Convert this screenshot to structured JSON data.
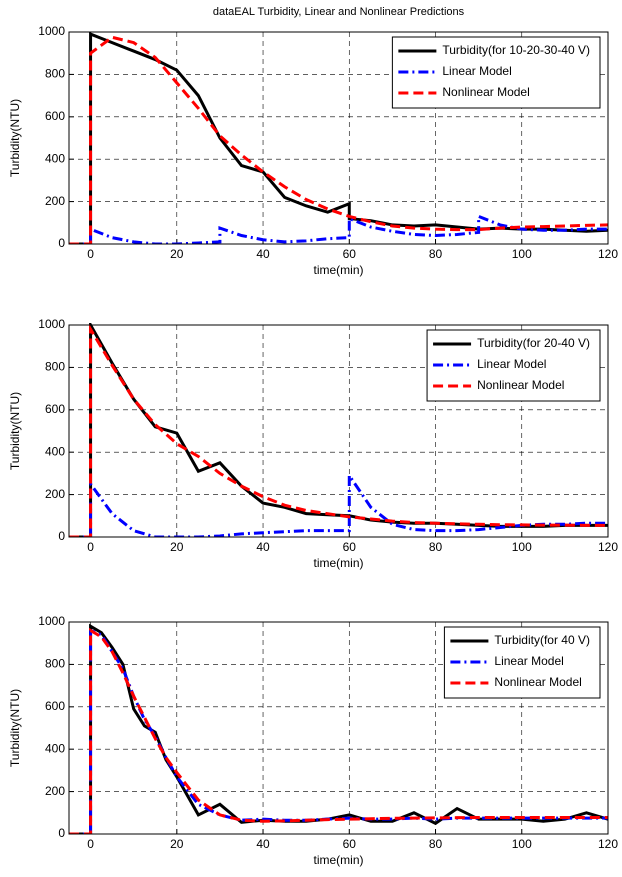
{
  "chart_data": [
    {
      "type": "line",
      "title": "dataEAL  Turbidity, Linear and Nonlinear Predictions",
      "x_label": "time(min)",
      "y_label": "Turbidity(NTU)",
      "xlim": [
        -5,
        120
      ],
      "ylim": [
        0,
        1000
      ],
      "xticks": [
        0,
        20,
        40,
        60,
        80,
        100,
        120
      ],
      "yticks": [
        0,
        200,
        400,
        600,
        800,
        1000
      ],
      "grid": true,
      "legend": "upper right",
      "x": [
        -5,
        0,
        0,
        5,
        10,
        15,
        20,
        25,
        30,
        30,
        35,
        40,
        45,
        50,
        55,
        60,
        60,
        65,
        70,
        75,
        80,
        85,
        90,
        90,
        95,
        100,
        105,
        110,
        115,
        120
      ],
      "series": [
        {
          "name": "Turbidity(for 10-20-30-40 V)",
          "color": "#000000",
          "style": "solid",
          "values": [
            0,
            0,
            990,
            950,
            910,
            870,
            820,
            700,
            500,
            500,
            370,
            340,
            220,
            180,
            150,
            190,
            120,
            110,
            90,
            85,
            90,
            80,
            70,
            70,
            75,
            70,
            70,
            65,
            60,
            65
          ]
        },
        {
          "name": "Linear Model",
          "color": "#0000ff",
          "style": "dashdot",
          "values": [
            0,
            0,
            70,
            30,
            10,
            0,
            0,
            5,
            10,
            75,
            40,
            20,
            10,
            15,
            25,
            30,
            120,
            80,
            60,
            45,
            40,
            45,
            55,
            130,
            90,
            70,
            65,
            65,
            70,
            70
          ]
        },
        {
          "name": "Nonlinear Model",
          "color": "#ff0000",
          "style": "dashed",
          "values": [
            0,
            0,
            900,
            975,
            950,
            880,
            760,
            640,
            510,
            510,
            420,
            340,
            270,
            210,
            165,
            130,
            130,
            105,
            85,
            75,
            70,
            68,
            68,
            68,
            75,
            80,
            82,
            85,
            88,
            90
          ]
        }
      ]
    },
    {
      "type": "line",
      "x_label": "time(min)",
      "y_label": "Turbidity(NTU)",
      "xlim": [
        -5,
        120
      ],
      "ylim": [
        0,
        1000
      ],
      "xticks": [
        0,
        20,
        40,
        60,
        80,
        100,
        120
      ],
      "yticks": [
        0,
        200,
        400,
        600,
        800,
        1000
      ],
      "grid": true,
      "legend": "upper right",
      "x": [
        -5,
        0,
        0,
        5,
        10,
        15,
        20,
        25,
        30,
        35,
        40,
        45,
        50,
        55,
        60,
        60,
        65,
        70,
        75,
        80,
        85,
        90,
        95,
        100,
        105,
        110,
        115,
        120
      ],
      "series": [
        {
          "name": "Turbidity(for 20-40 V)",
          "color": "#000000",
          "style": "solid",
          "values": [
            0,
            0,
            1000,
            820,
            650,
            520,
            490,
            310,
            350,
            240,
            160,
            140,
            110,
            105,
            100,
            100,
            80,
            70,
            65,
            65,
            60,
            55,
            50,
            50,
            50,
            55,
            55,
            55
          ]
        },
        {
          "name": "Linear Model",
          "color": "#0000ff",
          "style": "dashdot",
          "values": [
            0,
            0,
            250,
            110,
            30,
            0,
            0,
            0,
            5,
            15,
            20,
            25,
            30,
            30,
            30,
            290,
            140,
            60,
            35,
            30,
            30,
            35,
            45,
            55,
            60,
            60,
            65,
            65
          ]
        },
        {
          "name": "Nonlinear Model",
          "color": "#ff0000",
          "style": "dashed",
          "values": [
            0,
            0,
            980,
            810,
            650,
            530,
            440,
            380,
            300,
            240,
            190,
            150,
            125,
            110,
            95,
            95,
            85,
            75,
            68,
            65,
            62,
            60,
            58,
            57,
            56,
            56,
            55,
            55
          ]
        }
      ]
    },
    {
      "type": "line",
      "x_label": "time(min)",
      "y_label": "Turbidity(NTU)",
      "xlim": [
        -5,
        120
      ],
      "ylim": [
        0,
        1000
      ],
      "xticks": [
        0,
        20,
        40,
        60,
        80,
        100,
        120
      ],
      "yticks": [
        0,
        200,
        400,
        600,
        800,
        1000
      ],
      "grid": true,
      "legend": "upper right",
      "x": [
        -5,
        0,
        0,
        2.5,
        5,
        7.5,
        10,
        12.5,
        15,
        17.5,
        20,
        25,
        30,
        35,
        40,
        45,
        50,
        55,
        60,
        65,
        70,
        75,
        80,
        85,
        90,
        95,
        100,
        105,
        110,
        115,
        120
      ],
      "series": [
        {
          "name": "Turbidity(for 40 V)",
          "color": "#000000",
          "style": "solid",
          "values": [
            0,
            0,
            980,
            950,
            880,
            800,
            590,
            510,
            480,
            350,
            270,
            90,
            140,
            55,
            65,
            60,
            60,
            70,
            90,
            60,
            60,
            100,
            50,
            120,
            70,
            70,
            70,
            60,
            70,
            100,
            70
          ]
        },
        {
          "name": "Linear Model",
          "color": "#0000ff",
          "style": "dashdot",
          "values": [
            0,
            0,
            960,
            940,
            860,
            780,
            650,
            540,
            460,
            360,
            270,
            140,
            90,
            65,
            70,
            65,
            65,
            70,
            75,
            70,
            70,
            75,
            70,
            75,
            75,
            75,
            75,
            75,
            75,
            75,
            75
          ]
        },
        {
          "name": "Nonlinear Model",
          "color": "#ff0000",
          "style": "dashed",
          "values": [
            0,
            0,
            960,
            930,
            860,
            760,
            650,
            550,
            450,
            360,
            290,
            160,
            90,
            65,
            60,
            62,
            65,
            68,
            70,
            72,
            74,
            75,
            76,
            77,
            78,
            78,
            78,
            78,
            78,
            78,
            78
          ]
        }
      ]
    }
  ]
}
